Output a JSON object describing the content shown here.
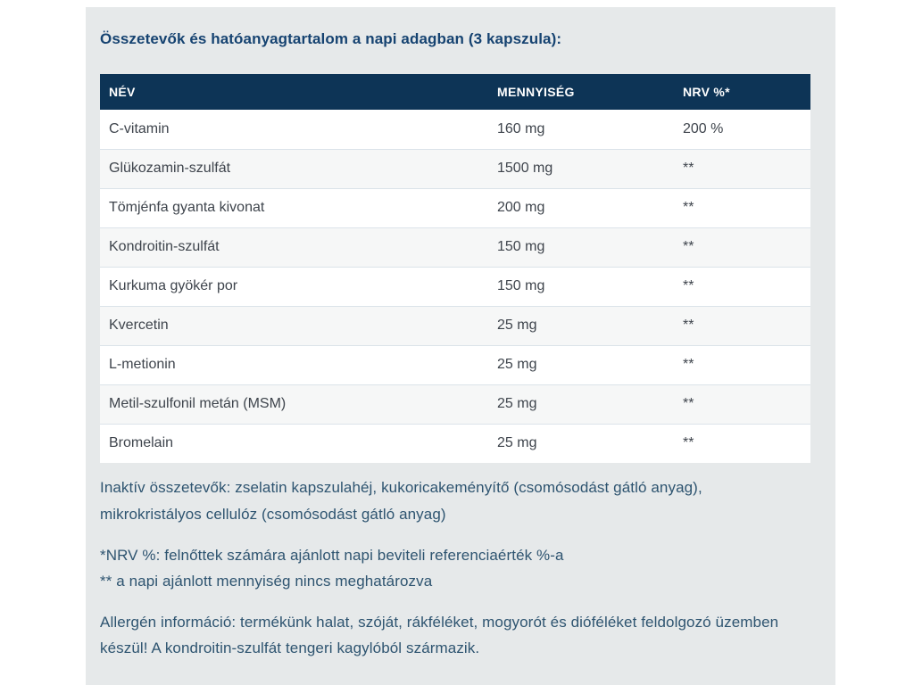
{
  "heading": "Összetevők és hatóanyagtartalom a napi adagban (3 kapszula):",
  "table": {
    "columns": [
      "NÉV",
      "MENNYISÉG",
      "NRV %*"
    ],
    "rows": [
      {
        "name": "C-vitamin",
        "amount": "160 mg",
        "nrv": "200 %"
      },
      {
        "name": "Glükozamin-szulfát",
        "amount": "1500 mg",
        "nrv": "**"
      },
      {
        "name": "Tömjénfa gyanta kivonat",
        "amount": "200 mg",
        "nrv": "**"
      },
      {
        "name": "Kondroitin-szulfát",
        "amount": "150 mg",
        "nrv": "**"
      },
      {
        "name": "Kurkuma gyökér por",
        "amount": "150 mg",
        "nrv": "**"
      },
      {
        "name": "Kvercetin",
        "amount": "25 mg",
        "nrv": "**"
      },
      {
        "name": "L-metionin",
        "amount": "25 mg",
        "nrv": "**"
      },
      {
        "name": "Metil-szulfonil metán (MSM)",
        "amount": "25 mg",
        "nrv": "**"
      },
      {
        "name": "Bromelain",
        "amount": "25 mg",
        "nrv": "**"
      }
    ]
  },
  "notes": {
    "inactive": "Inaktív összetevők: zselatin kapszulahéj, kukoricakeményítő (csomósodást gátló anyag),\nmikrokristályos cellulóz (csomósodást gátló anyag)",
    "nrv_definition": "*NRV %: felnőttek számára ajánlott napi beviteli referenciaérték %-a\n** a napi ajánlott mennyiség nincs meghatározva",
    "allergen": "Allergén információ: termékünk halat, szóját, rákféléket, mogyorót és dióféléket feldolgozó üzemben\nkészül! A kondroitin-szulfát tengeri kagylóból származik."
  },
  "colors": {
    "header_bg": "#0d3456",
    "header_text": "#ffffff",
    "heading_text": "#164371",
    "body_text": "#2e5470",
    "cell_text": "#3e444c",
    "panel_bg": "#e6e9ea",
    "row_alt_bg": "#f6f7f7",
    "row_border": "#dbe3e9"
  }
}
